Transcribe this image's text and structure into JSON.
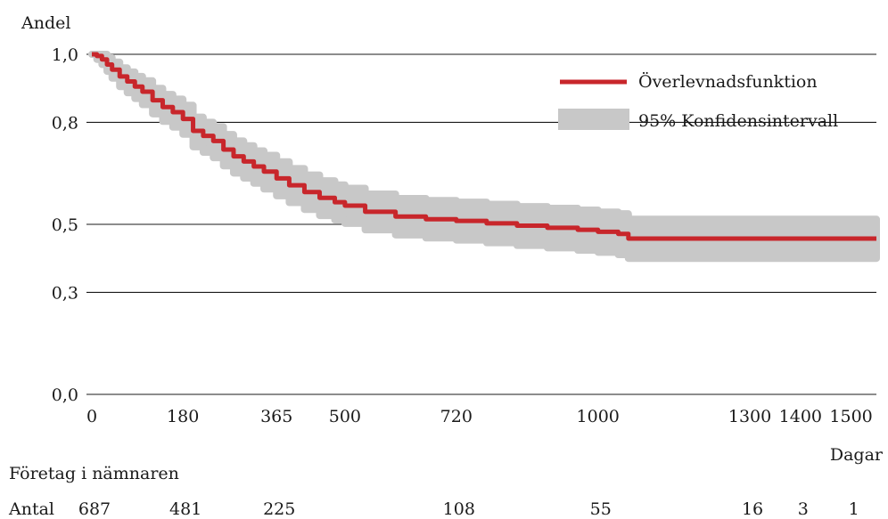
{
  "chart_data": {
    "type": "line",
    "title": "",
    "ylabel": "Andel",
    "xlabel": "Dagar",
    "ylim": [
      0.0,
      1.0
    ],
    "xlim": [
      0,
      1550
    ],
    "y_ticks": [
      {
        "value": 0.0,
        "label": "0,0"
      },
      {
        "value": 0.3,
        "label": "0,3"
      },
      {
        "value": 0.5,
        "label": "0,5"
      },
      {
        "value": 0.8,
        "label": "0,8"
      },
      {
        "value": 1.0,
        "label": "1,0"
      }
    ],
    "x_ticks": [
      {
        "value": 0,
        "label": "0"
      },
      {
        "value": 180,
        "label": "180"
      },
      {
        "value": 365,
        "label": "365"
      },
      {
        "value": 500,
        "label": "500"
      },
      {
        "value": 720,
        "label": "720"
      },
      {
        "value": 1000,
        "label": "1000"
      },
      {
        "value": 1300,
        "label": "1300"
      },
      {
        "value": 1400,
        "label": "1400"
      },
      {
        "value": 1500,
        "label": "1500"
      }
    ],
    "grid": "horizontal",
    "legend": {
      "placement": "top-right",
      "entries": [
        {
          "label": "Överlevnadsfunktion",
          "color": "#c8262b",
          "kind": "line"
        },
        {
          "label": "95% Konfidensintervall",
          "color": "#c8c8c8",
          "kind": "band"
        }
      ]
    },
    "series": [
      {
        "name": "Överlevnadsfunktion",
        "color": "#c8262b",
        "x": [
          0,
          10,
          20,
          30,
          40,
          55,
          70,
          85,
          100,
          120,
          140,
          160,
          180,
          200,
          220,
          240,
          260,
          280,
          300,
          320,
          340,
          365,
          390,
          420,
          450,
          480,
          500,
          540,
          600,
          660,
          720,
          780,
          840,
          900,
          960,
          1000,
          1040,
          1060,
          1550
        ],
        "y": [
          1.0,
          0.995,
          0.985,
          0.97,
          0.955,
          0.935,
          0.92,
          0.905,
          0.89,
          0.865,
          0.845,
          0.83,
          0.81,
          0.775,
          0.76,
          0.745,
          0.72,
          0.7,
          0.685,
          0.67,
          0.655,
          0.635,
          0.615,
          0.595,
          0.578,
          0.565,
          0.555,
          0.537,
          0.523,
          0.515,
          0.51,
          0.503,
          0.496,
          0.49,
          0.484,
          0.478,
          0.472,
          0.458,
          0.458
        ]
      }
    ],
    "confidence_band": {
      "name": "95% Konfidensintervall",
      "color": "#c8c8c8",
      "x": [
        0,
        10,
        20,
        30,
        40,
        55,
        70,
        85,
        100,
        120,
        140,
        160,
        180,
        200,
        220,
        240,
        260,
        280,
        300,
        320,
        340,
        365,
        390,
        420,
        450,
        480,
        500,
        540,
        600,
        660,
        720,
        780,
        840,
        900,
        960,
        1000,
        1040,
        1060,
        1550
      ],
      "lower": [
        1.0,
        0.985,
        0.97,
        0.95,
        0.93,
        0.905,
        0.887,
        0.87,
        0.852,
        0.825,
        0.803,
        0.786,
        0.765,
        0.728,
        0.712,
        0.696,
        0.672,
        0.651,
        0.636,
        0.621,
        0.604,
        0.584,
        0.564,
        0.544,
        0.526,
        0.513,
        0.503,
        0.484,
        0.469,
        0.46,
        0.454,
        0.446,
        0.438,
        0.431,
        0.424,
        0.418,
        0.411,
        0.4,
        0.4
      ],
      "upper": [
        1.0,
        1.0,
        1.0,
        0.99,
        0.977,
        0.96,
        0.948,
        0.935,
        0.922,
        0.9,
        0.882,
        0.868,
        0.85,
        0.815,
        0.8,
        0.787,
        0.764,
        0.745,
        0.731,
        0.716,
        0.703,
        0.684,
        0.664,
        0.645,
        0.628,
        0.616,
        0.606,
        0.589,
        0.576,
        0.57,
        0.565,
        0.559,
        0.552,
        0.547,
        0.542,
        0.536,
        0.531,
        0.515,
        0.515
      ]
    },
    "risk_table": {
      "heading": "Företag i nämnaren",
      "row_label": "Antal",
      "values": [
        {
          "x": 0,
          "label": "687"
        },
        {
          "x": 180,
          "label": "481"
        },
        {
          "x": 365,
          "label": "225"
        },
        {
          "x": 720,
          "label": "108"
        },
        {
          "x": 1000,
          "label": "55"
        },
        {
          "x": 1300,
          "label": "16"
        },
        {
          "x": 1400,
          "label": "3"
        },
        {
          "x": 1500,
          "label": "1"
        }
      ]
    }
  }
}
